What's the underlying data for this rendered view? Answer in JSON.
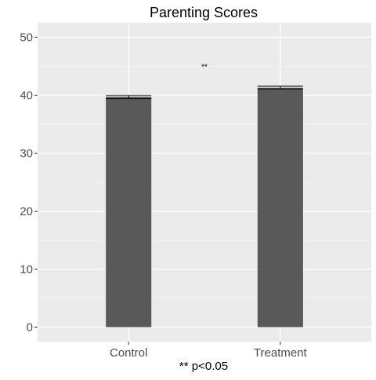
{
  "chart_data": {
    "type": "bar",
    "title": "Parenting Scores",
    "xlabel": "** p<0.05",
    "ylabel": "",
    "categories": [
      "Control",
      "Treatment"
    ],
    "values": [
      39.7,
      41.3
    ],
    "error": [
      0.25,
      0.25
    ],
    "ylim": [
      -2.5,
      52.5
    ],
    "yticks": [
      0,
      10,
      20,
      30,
      40,
      50
    ],
    "grid": true,
    "legend": "none",
    "annotations": [
      {
        "text": "**",
        "x": 1.5,
        "y": 45
      }
    ],
    "colors": {
      "bar": "#595959",
      "panel": "#ebebeb",
      "grid": "#ffffff",
      "errorbar": "#000000"
    }
  }
}
